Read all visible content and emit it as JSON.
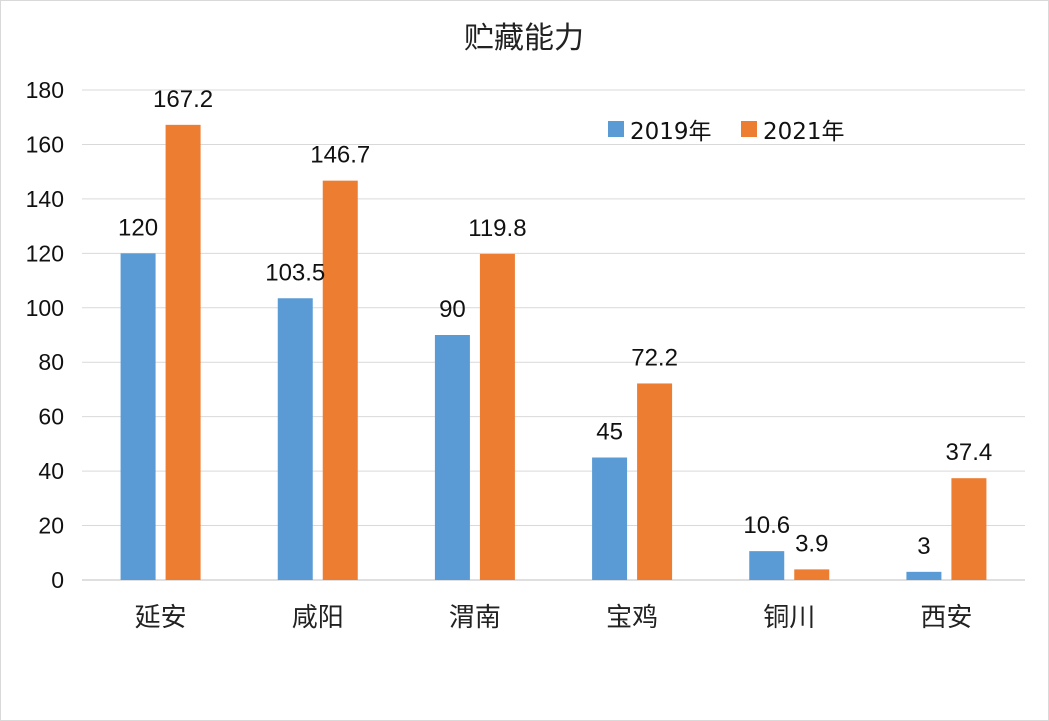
{
  "chart_data": {
    "type": "bar",
    "title": "贮藏能力",
    "categories": [
      "延安",
      "咸阳",
      "渭南",
      "宝鸡",
      "铜川",
      "西安"
    ],
    "series": [
      {
        "name": "2019年",
        "color": "#5B9BD5",
        "values": [
          120,
          103.5,
          90,
          45,
          10.6,
          3
        ]
      },
      {
        "name": "2021年",
        "color": "#ED7D31",
        "values": [
          167.2,
          146.7,
          119.8,
          72.2,
          3.9,
          37.4
        ]
      }
    ],
    "ylim": [
      0,
      180
    ],
    "yticks": [
      0,
      20,
      40,
      60,
      80,
      100,
      120,
      140,
      160,
      180
    ],
    "grid": true,
    "legend_position": "top-right",
    "xlabel": "",
    "ylabel": ""
  }
}
